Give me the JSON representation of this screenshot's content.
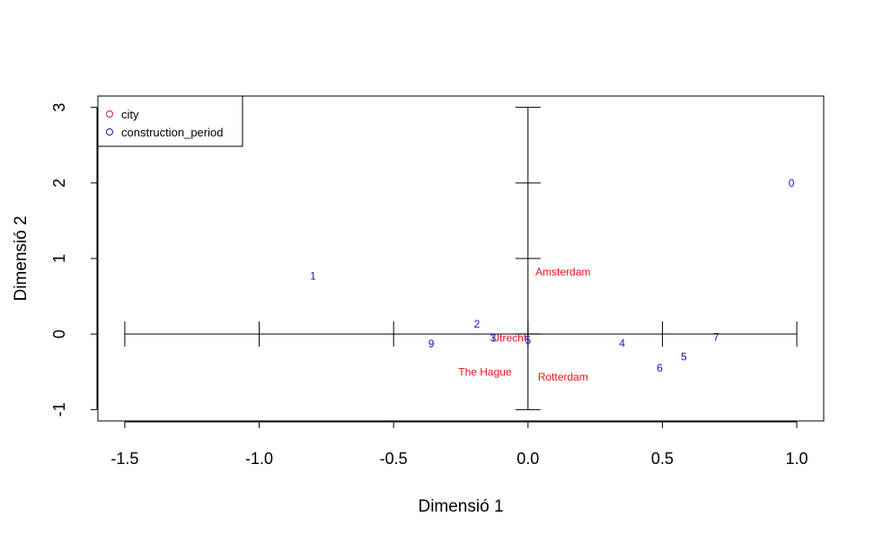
{
  "chart_data": {
    "type": "scatter",
    "title": "",
    "xlabel": "Dimensió 1",
    "ylabel": "Dimensió 2",
    "xlim": [
      -1.6,
      1.1
    ],
    "ylim": [
      -1.15,
      3.15
    ],
    "x_ticks": [
      -1.5,
      -1.0,
      -0.5,
      0.0,
      0.5,
      1.0
    ],
    "x_tick_labels": [
      "-1.5",
      "-1.0",
      "-0.5",
      "0.0",
      "0.5",
      "1.0"
    ],
    "y_ticks": [
      -1,
      0,
      1,
      2,
      3
    ],
    "y_tick_labels": [
      "-1",
      "0",
      "1",
      "2",
      "3"
    ],
    "grid": false,
    "legend_position": "top-left",
    "reference_axes": {
      "x_ticks": [
        -1.5,
        -1.0,
        -0.5,
        0.0,
        0.5,
        1.0
      ],
      "y_ticks": [
        -1,
        0,
        1,
        2,
        3
      ]
    },
    "series": [
      {
        "name": "city",
        "color": "#e8141c",
        "points": [
          {
            "label": "Amsterdam",
            "x": 0.13,
            "y": 0.82
          },
          {
            "label": "Utrecht",
            "x": -0.07,
            "y": -0.05
          },
          {
            "label": "The Hague",
            "x": -0.16,
            "y": -0.5
          },
          {
            "label": "Rotterdam",
            "x": 0.13,
            "y": -0.57
          }
        ]
      },
      {
        "name": "construction_period",
        "color": "#1414c8",
        "points": [
          {
            "label": "0",
            "x": 0.98,
            "y": 2.0
          },
          {
            "label": "1",
            "x": -0.8,
            "y": 0.77
          },
          {
            "label": "2",
            "x": -0.19,
            "y": 0.13
          },
          {
            "label": "3",
            "x": -0.13,
            "y": -0.05
          },
          {
            "label": "4",
            "x": 0.35,
            "y": -0.12
          },
          {
            "label": "5",
            "x": 0.0,
            "y": -0.08
          },
          {
            "label": "5",
            "x": 0.58,
            "y": -0.3
          },
          {
            "label": "6",
            "x": 0.49,
            "y": -0.45
          },
          {
            "label": "7",
            "x": 0.7,
            "y": -0.04
          },
          {
            "label": "9",
            "x": -0.36,
            "y": -0.13
          }
        ]
      }
    ]
  }
}
